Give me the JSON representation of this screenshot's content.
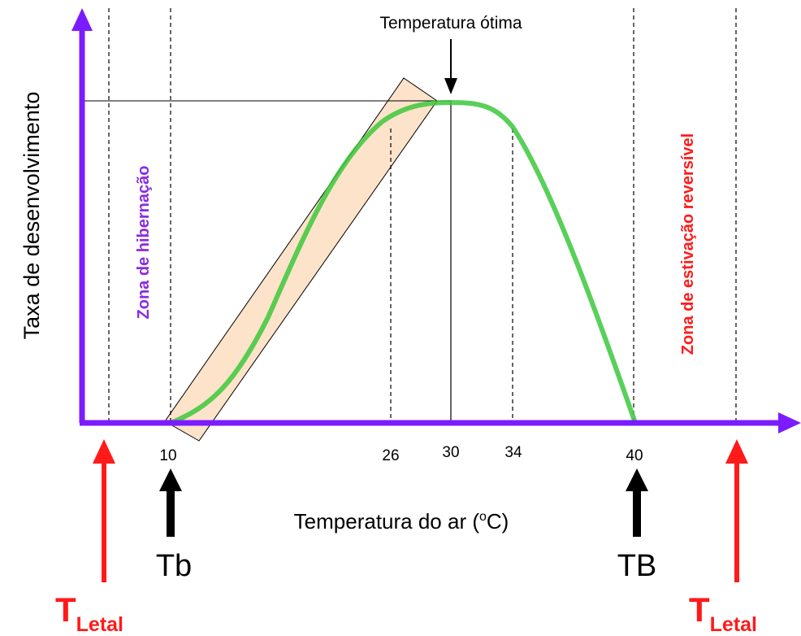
{
  "title_arrow_label": "Temperatura ótima",
  "ylabel": "Taxa de desenvolvimento",
  "xlabel": {
    "prefix": "Temperatura do ar (",
    "sup": "o",
    "suffix": "C)"
  },
  "zones": {
    "left": "Zona de hibernação",
    "right": "Zona de estivação reversível"
  },
  "ticks": [
    "10",
    "26",
    "30",
    "34",
    "40"
  ],
  "markers": {
    "tb": "Tb",
    "TB": "TB",
    "lethal_main": "T",
    "lethal_sub": "Letal"
  },
  "colors": {
    "axis": "#7a1cff",
    "curve": "#3cc83c",
    "band_fill": "#fcd9b8",
    "zone_left": "#8a2be2",
    "zone_right": "#ff1a1a",
    "lethal": "#ff1a1a",
    "text": "#000000"
  }
}
